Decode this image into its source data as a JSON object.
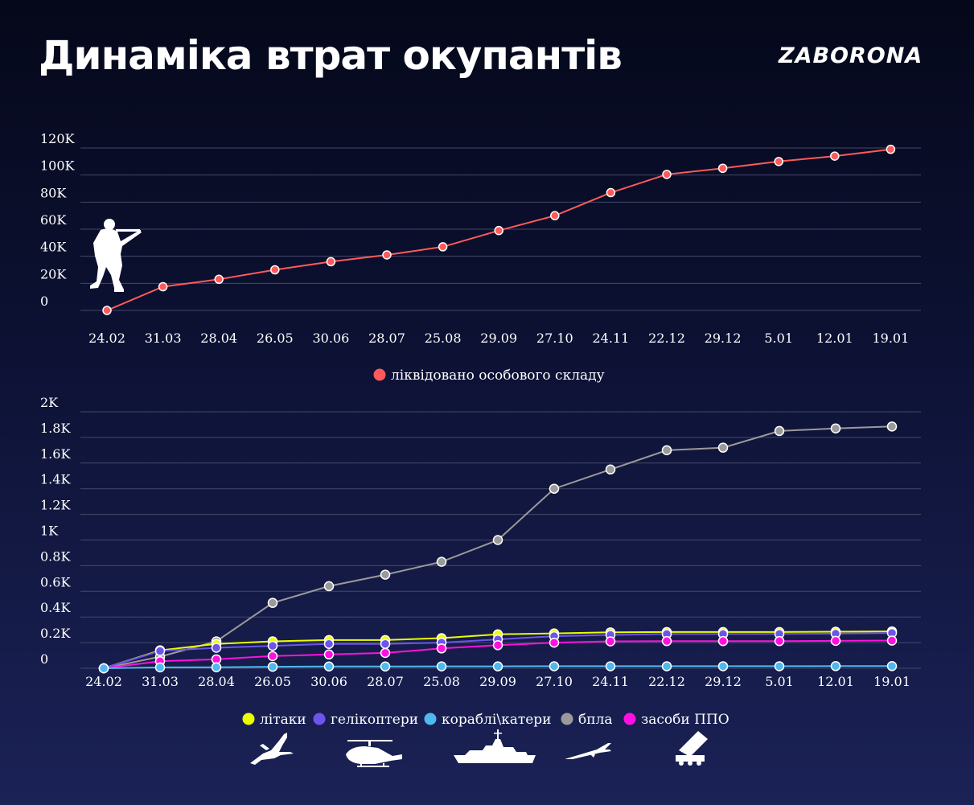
{
  "header": {
    "title": "Динаміка втрат окупантів",
    "logo": "ZABORONA"
  },
  "colors": {
    "personnel": "#ff5a5a",
    "aircraft": "#eaff00",
    "helicopters": "#6c55e8",
    "ships": "#4fb8ee",
    "drones": "#9a9a9a",
    "air_defense": "#ff10e0",
    "grid": "#44486a"
  },
  "icons": [
    "soldier-icon",
    "plane-icon",
    "helicopter-icon",
    "ship-icon",
    "drone-icon",
    "air-defense-icon"
  ],
  "chart_data": [
    {
      "type": "line",
      "x": [
        "24.02",
        "31.03",
        "28.04",
        "26.05",
        "30.06",
        "28.07",
        "25.08",
        "29.09",
        "27.10",
        "24.11",
        "22.12",
        "29.12",
        "5.01",
        "12.01",
        "19.01"
      ],
      "yticks": [
        "0",
        "20K",
        "40K",
        "60K",
        "80K",
        "100K",
        "120K"
      ],
      "ylim": [
        0,
        120000
      ],
      "grid": true,
      "legend_position": "bottom",
      "series": [
        {
          "name": "ліквідовано особового складу",
          "color": "#ff5a5a",
          "values": [
            0,
            17500,
            23000,
            30000,
            36000,
            41000,
            47000,
            59000,
            70000,
            87000,
            100500,
            105000,
            110000,
            114000,
            119000
          ]
        }
      ]
    },
    {
      "type": "line",
      "x": [
        "24.02",
        "31.03",
        "28.04",
        "26.05",
        "30.06",
        "28.07",
        "25.08",
        "29.09",
        "27.10",
        "24.11",
        "22.12",
        "29.12",
        "5.01",
        "12.01",
        "19.01"
      ],
      "yticks": [
        "0",
        "0.2K",
        "0.4K",
        "0.6K",
        "0.8K",
        "1K",
        "1.2K",
        "1.4K",
        "1.6K",
        "1.8K",
        "2K"
      ],
      "ylim": [
        0,
        2000
      ],
      "grid": true,
      "legend_position": "bottom",
      "series": [
        {
          "name": "літаки",
          "color": "#eaff00",
          "values": [
            0,
            140,
            190,
            210,
            220,
            220,
            235,
            265,
            272,
            280,
            283,
            283,
            283,
            285,
            288
          ]
        },
        {
          "name": "гелікоптери",
          "color": "#6c55e8",
          "values": [
            0,
            135,
            160,
            175,
            190,
            190,
            200,
            225,
            250,
            260,
            267,
            267,
            268,
            270,
            275
          ]
        },
        {
          "name": "кораблі\\катери",
          "color": "#4fb8ee",
          "values": [
            0,
            7,
            8,
            12,
            14,
            14,
            15,
            15,
            16,
            16,
            16,
            16,
            16,
            17,
            17
          ]
        },
        {
          "name": "бпла",
          "color": "#9a9a9a",
          "values": [
            0,
            90,
            210,
            510,
            640,
            730,
            830,
            1000,
            1400,
            1550,
            1700,
            1720,
            1850,
            1870,
            1885
          ]
        },
        {
          "name": "засоби ППО",
          "color": "#ff10e0",
          "values": [
            0,
            55,
            70,
            95,
            108,
            120,
            155,
            180,
            200,
            210,
            212,
            212,
            212,
            214,
            216
          ]
        }
      ]
    }
  ]
}
